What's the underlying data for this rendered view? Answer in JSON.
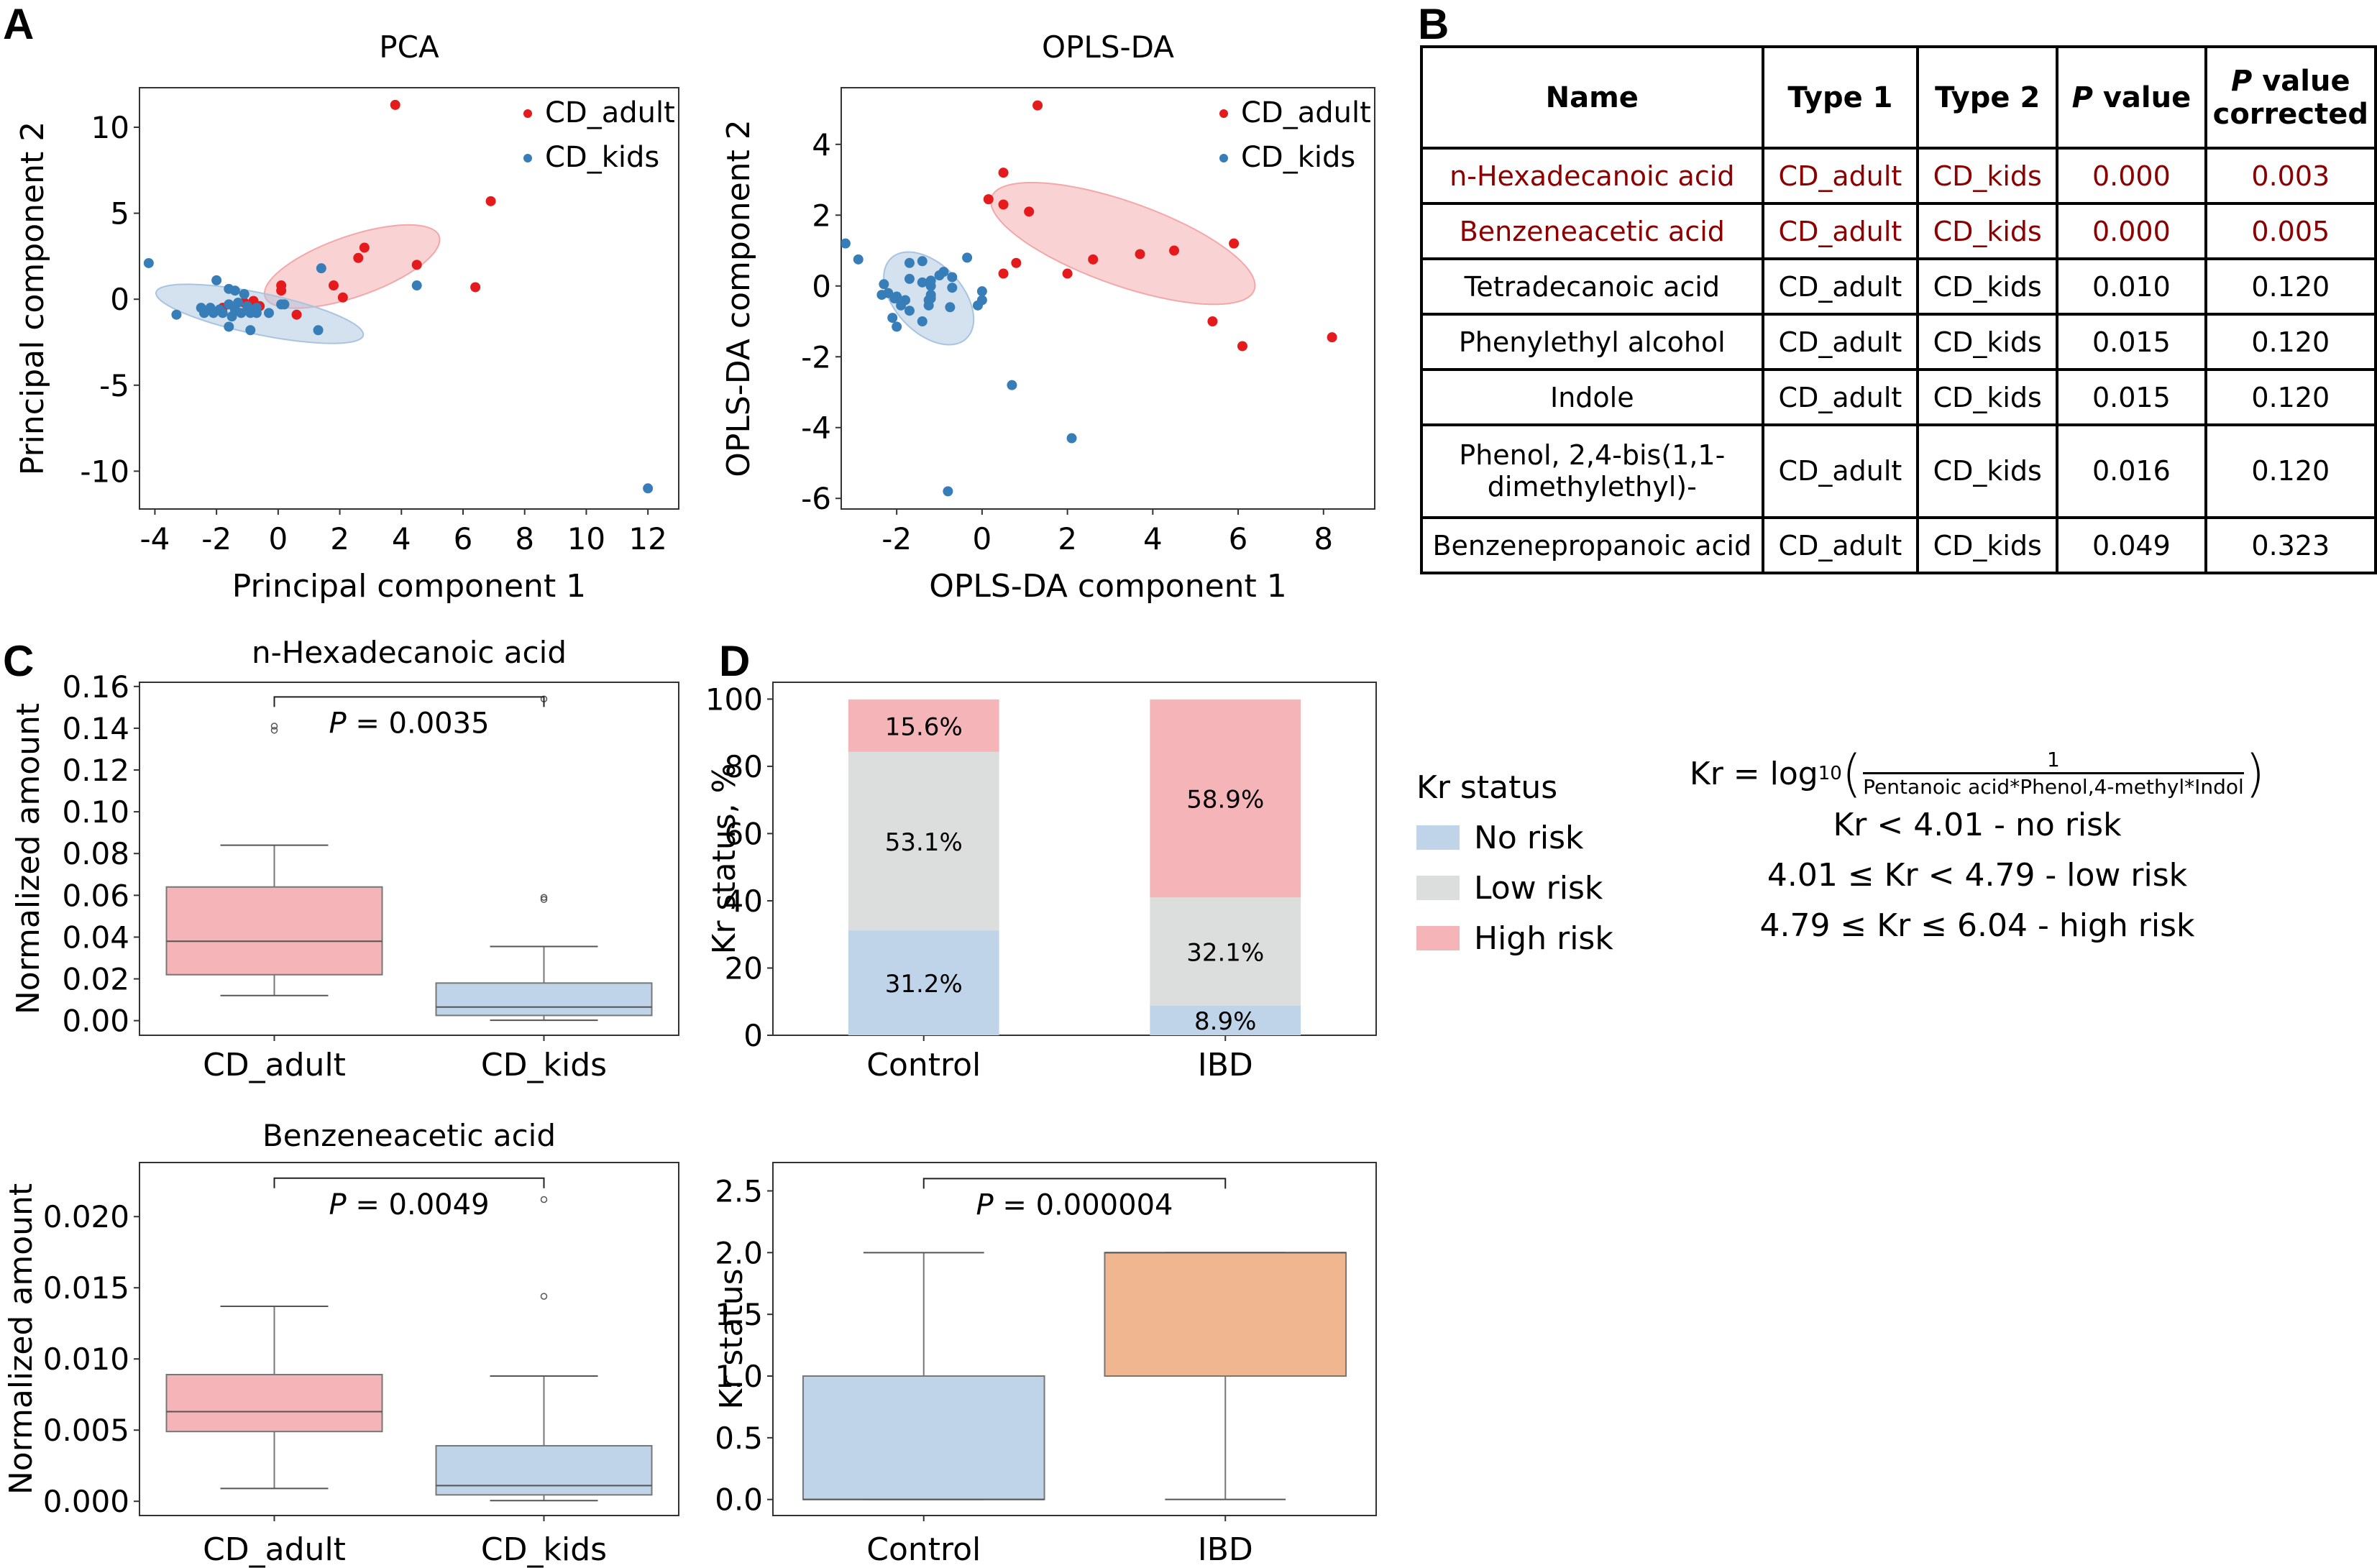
{
  "panels": {
    "A": "A",
    "B": "B",
    "C": "C",
    "D": "D"
  },
  "colors": {
    "cd_adult_point": "#e41a1c",
    "cd_kids_point": "#377eb8",
    "adult_ellipse": "#f4a7a9",
    "kids_ellipse": "#a9c4e0",
    "box_adult": "#f5b5b8",
    "box_kids": "#bfd4e8",
    "no_risk": "#bfd4e8",
    "low_risk": "#dcdddd",
    "high_risk": "#f5b5b8",
    "box_ibd": "#f0b690",
    "table_highlight": "#8b0000"
  },
  "chart_data": [
    {
      "id": "pca",
      "type": "scatter",
      "title": "PCA",
      "xlabel": "Principal component 1",
      "ylabel": "Principal component 2",
      "xlim": [
        -4.5,
        13.0
      ],
      "ylim": [
        -12.2,
        12.3
      ],
      "xticks": [
        -4,
        -2,
        0,
        2,
        4,
        6,
        8,
        10,
        12
      ],
      "yticks": [
        -10,
        -5,
        0,
        5,
        10
      ],
      "legend": {
        "position": "top-right",
        "entries": [
          "CD_adult",
          "CD_kids"
        ]
      },
      "series": [
        {
          "name": "CD_adult",
          "points": [
            [
              3.8,
              11.3
            ],
            [
              6.9,
              5.7
            ],
            [
              2.8,
              3.0
            ],
            [
              2.6,
              2.4
            ],
            [
              4.5,
              2.0
            ],
            [
              6.4,
              0.7
            ],
            [
              0.1,
              0.8
            ],
            [
              0.1,
              0.5
            ],
            [
              1.8,
              0.8
            ],
            [
              2.1,
              0.1
            ],
            [
              0.6,
              -0.9
            ],
            [
              -1.1,
              -0.2
            ],
            [
              -0.8,
              -0.1
            ],
            [
              -0.6,
              -0.4
            ],
            [
              -1.8,
              -0.5
            ]
          ]
        },
        {
          "name": "CD_kids",
          "points": [
            [
              -4.2,
              2.1
            ],
            [
              -3.3,
              -0.9
            ],
            [
              -2.0,
              1.1
            ],
            [
              -1.6,
              0.6
            ],
            [
              -1.4,
              0.5
            ],
            [
              -1.1,
              0.3
            ],
            [
              -2.5,
              -0.5
            ],
            [
              -2.4,
              -0.8
            ],
            [
              -2.2,
              -0.5
            ],
            [
              -2.1,
              -0.8
            ],
            [
              -1.9,
              -0.6
            ],
            [
              -1.8,
              -0.8
            ],
            [
              -1.6,
              -0.3
            ],
            [
              -1.5,
              -1.0
            ],
            [
              -1.4,
              -0.6
            ],
            [
              -1.3,
              -0.2
            ],
            [
              -1.2,
              -0.8
            ],
            [
              -1.0,
              -0.4
            ],
            [
              -0.9,
              -0.8
            ],
            [
              -0.7,
              -0.5
            ],
            [
              -0.7,
              -0.8
            ],
            [
              -0.3,
              -0.8
            ],
            [
              0.1,
              -0.3
            ],
            [
              0.2,
              -0.3
            ],
            [
              -1.6,
              -1.6
            ],
            [
              -0.9,
              -1.8
            ],
            [
              1.3,
              -1.8
            ],
            [
              1.4,
              1.8
            ],
            [
              4.5,
              0.8
            ],
            [
              12.0,
              -11.0
            ]
          ]
        }
      ],
      "ellipses": [
        {
          "group": "CD_adult",
          "center": [
            2.4,
            1.9
          ],
          "semi_major": 3.4,
          "semi_minor": 1.55,
          "angle_deg": 38
        },
        {
          "group": "CD_kids",
          "center": [
            -0.6,
            -0.85
          ],
          "semi_major": 3.6,
          "semi_minor": 1.15,
          "angle_deg": -22
        }
      ]
    },
    {
      "id": "oplsda",
      "type": "scatter",
      "title": "OPLS-DA",
      "xlabel": "OPLS-DA component 1",
      "ylabel": "OPLS-DA component 2",
      "xlim": [
        -3.3,
        9.2
      ],
      "ylim": [
        -6.3,
        5.6
      ],
      "xticks": [
        -2,
        0,
        2,
        4,
        6,
        8
      ],
      "yticks": [
        -6,
        -4,
        -2,
        0,
        2,
        4
      ],
      "legend": {
        "position": "top-right",
        "entries": [
          "CD_adult",
          "CD_kids"
        ]
      },
      "series": [
        {
          "name": "CD_adult",
          "points": [
            [
              1.3,
              5.1
            ],
            [
              0.5,
              3.2
            ],
            [
              0.15,
              2.45
            ],
            [
              0.5,
              2.3
            ],
            [
              1.1,
              2.1
            ],
            [
              5.9,
              1.2
            ],
            [
              4.5,
              1.0
            ],
            [
              3.7,
              0.9
            ],
            [
              2.6,
              0.75
            ],
            [
              0.8,
              0.65
            ],
            [
              0.5,
              0.35
            ],
            [
              2.0,
              0.35
            ],
            [
              5.4,
              -1.0
            ],
            [
              8.2,
              -1.45
            ],
            [
              6.1,
              -1.7
            ]
          ]
        },
        {
          "name": "CD_kids",
          "points": [
            [
              -3.2,
              1.2
            ],
            [
              -2.9,
              0.75
            ],
            [
              -1.7,
              0.65
            ],
            [
              -1.4,
              0.7
            ],
            [
              -2.3,
              0.05
            ],
            [
              -2.2,
              -0.2
            ],
            [
              -2.35,
              -0.25
            ],
            [
              -1.7,
              0.2
            ],
            [
              -1.4,
              0.1
            ],
            [
              -1.2,
              0.15
            ],
            [
              -1.2,
              0.0
            ],
            [
              -0.9,
              0.4
            ],
            [
              -1.0,
              0.3
            ],
            [
              -0.7,
              0.25
            ],
            [
              -0.7,
              -0.05
            ],
            [
              -2.0,
              -0.3
            ],
            [
              -2.05,
              -0.35
            ],
            [
              -1.8,
              -0.4
            ],
            [
              -1.2,
              -0.25
            ],
            [
              -1.2,
              -0.35
            ],
            [
              -1.25,
              -0.4
            ],
            [
              -1.25,
              -0.55
            ],
            [
              -1.9,
              -0.55
            ],
            [
              -1.7,
              -0.7
            ],
            [
              -0.75,
              -0.6
            ],
            [
              -0.35,
              0.8
            ],
            [
              0.0,
              -0.15
            ],
            [
              0.0,
              -0.4
            ],
            [
              -0.1,
              -0.55
            ],
            [
              -2.1,
              -0.9
            ],
            [
              -2.0,
              -1.15
            ],
            [
              -1.4,
              -1.0
            ],
            [
              0.7,
              -2.8
            ],
            [
              2.1,
              -4.3
            ],
            [
              -0.8,
              -5.8
            ]
          ]
        }
      ],
      "ellipses": [
        {
          "group": "CD_adult",
          "center": [
            3.3,
            1.2
          ],
          "semi_major": 3.35,
          "semi_minor": 1.15,
          "angle_deg": -24
        },
        {
          "group": "CD_kids",
          "center": [
            -1.25,
            -0.35
          ],
          "semi_major": 1.45,
          "semi_minor": 0.85,
          "angle_deg": -58
        }
      ]
    },
    {
      "id": "hexadecanoic",
      "type": "box",
      "title": "n-Hexadecanoic acid",
      "xlabel": "",
      "ylabel": "Normalized amount",
      "categories": [
        "CD_adult",
        "CD_kids"
      ],
      "ylim": [
        -0.007,
        0.162
      ],
      "yticks": [
        0.0,
        0.02,
        0.04,
        0.06,
        0.08,
        0.1,
        0.12,
        0.14,
        0.16
      ],
      "ytick_labels": [
        "0.00",
        "0.02",
        "0.04",
        "0.06",
        "0.08",
        "0.10",
        "0.12",
        "0.14",
        "0.16"
      ],
      "boxes": [
        {
          "category": "CD_adult",
          "whisker_low": 0.012,
          "q1": 0.022,
          "median": 0.038,
          "q3": 0.064,
          "whisker_high": 0.084,
          "outliers": [
            0.139,
            0.141
          ]
        },
        {
          "category": "CD_kids",
          "whisker_low": 0.0002,
          "q1": 0.0025,
          "median": 0.0065,
          "q3": 0.018,
          "whisker_high": 0.0355,
          "outliers": [
            0.058,
            0.059,
            0.154
          ]
        }
      ],
      "annotation": {
        "text_italic": "P",
        "text_rest": " = 0.0035",
        "bracket_y": 0.155
      }
    },
    {
      "id": "benzeneacetic",
      "type": "box",
      "title": "Benzeneacetic acid",
      "xlabel": "",
      "ylabel": "Normalized amount",
      "categories": [
        "CD_adult",
        "CD_kids"
      ],
      "ylim": [
        -0.001,
        0.0238
      ],
      "yticks": [
        0.0,
        0.005,
        0.01,
        0.015,
        0.02
      ],
      "ytick_labels": [
        "0.000",
        "0.005",
        "0.010",
        "0.015",
        "0.020"
      ],
      "boxes": [
        {
          "category": "CD_adult",
          "whisker_low": 0.0009,
          "q1": 0.0049,
          "median": 0.0063,
          "q3": 0.0089,
          "whisker_high": 0.0137,
          "outliers": []
        },
        {
          "category": "CD_kids",
          "whisker_low": 5e-05,
          "q1": 0.00045,
          "median": 0.0011,
          "q3": 0.0039,
          "whisker_high": 0.0088,
          "outliers": [
            0.0144,
            0.0212
          ]
        }
      ],
      "annotation": {
        "text_italic": "P",
        "text_rest": " = 0.0049",
        "bracket_y": 0.0227
      }
    },
    {
      "id": "kr_stacked",
      "type": "bar",
      "stacked": true,
      "title": "",
      "xlabel": "",
      "ylabel": "Kr status, %",
      "categories": [
        "Control",
        "IBD"
      ],
      "ylim": [
        0,
        105
      ],
      "yticks": [
        0,
        20,
        40,
        60,
        80,
        100
      ],
      "series": [
        {
          "name": "No risk",
          "values": [
            31.2,
            8.9
          ],
          "labels": [
            "31.2%",
            "8.9%"
          ]
        },
        {
          "name": "Low risk",
          "values": [
            53.1,
            32.1
          ],
          "labels": [
            "53.1%",
            "32.1%"
          ]
        },
        {
          "name": "High risk",
          "values": [
            15.6,
            58.9
          ],
          "labels": [
            "15.6%",
            "58.9%"
          ]
        }
      ],
      "legend": {
        "position": "right",
        "title": "Kr status",
        "entries": [
          "No risk",
          "Low risk",
          "High risk"
        ]
      }
    },
    {
      "id": "kr_box",
      "type": "box",
      "title": "",
      "xlabel": "",
      "ylabel": "Kr status",
      "categories": [
        "Control",
        "IBD"
      ],
      "ylim": [
        -0.13,
        2.73
      ],
      "yticks": [
        0.0,
        0.5,
        1.0,
        1.5,
        2.0,
        2.5
      ],
      "ytick_labels": [
        "0.0",
        "0.5",
        "1.0",
        "1.5",
        "2.0",
        "2.5"
      ],
      "boxes": [
        {
          "category": "Control",
          "whisker_low": 0.0,
          "q1": 0.0,
          "median": 0.0,
          "q3": 1.0,
          "whisker_high": 2.0,
          "outliers": []
        },
        {
          "category": "IBD",
          "whisker_low": 0.0,
          "q1": 1.0,
          "median": 2.0,
          "q3": 2.0,
          "whisker_high": 2.0,
          "outliers": []
        }
      ],
      "annotation": {
        "text_italic": "P",
        "text_rest": " = 0.000004",
        "bracket_y": 2.6
      }
    }
  ],
  "table": {
    "headers": {
      "name": "Name",
      "type1": "Type 1",
      "type2": "Type 2",
      "pvalue_italic": "P",
      "pvalue_rest": " value",
      "pcorr_italic": "P",
      "pcorr_line1_rest": " value",
      "pcorr_line2": "corrected"
    },
    "rows": [
      {
        "name": "n-Hexadecanoic acid",
        "type1": "CD_adult",
        "type2": "CD_kids",
        "p": "0.000",
        "p_corr": "0.003",
        "highlight": true
      },
      {
        "name": "Benzeneacetic acid",
        "type1": "CD_adult",
        "type2": "CD_kids",
        "p": "0.000",
        "p_corr": "0.005",
        "highlight": true
      },
      {
        "name": "Tetradecanoic acid",
        "type1": "CD_adult",
        "type2": "CD_kids",
        "p": "0.010",
        "p_corr": "0.120",
        "highlight": false
      },
      {
        "name": "Phenylethyl alcohol",
        "type1": "CD_adult",
        "type2": "CD_kids",
        "p": "0.015",
        "p_corr": "0.120",
        "highlight": false
      },
      {
        "name": "Indole",
        "type1": "CD_adult",
        "type2": "CD_kids",
        "p": "0.015",
        "p_corr": "0.120",
        "highlight": false
      },
      {
        "name_line1": "Phenol, 2,4-bis(1,1-",
        "name_line2": "dimethylethyl)-",
        "type1": "CD_adult",
        "type2": "CD_kids",
        "p": "0.016",
        "p_corr": "0.120",
        "highlight": false
      },
      {
        "name": "Benzenepropanoic acid",
        "type1": "CD_adult",
        "type2": "CD_kids",
        "p": "0.049",
        "p_corr": "0.323",
        "highlight": false
      }
    ]
  },
  "kr_legend": {
    "title": "Kr status",
    "items": [
      {
        "label": "No risk",
        "color": "#bfd4e8"
      },
      {
        "label": "Low risk",
        "color": "#dcdddd"
      },
      {
        "label": "High risk",
        "color": "#f5b5b8"
      }
    ]
  },
  "formula": {
    "lhs": "Kr = log",
    "subscript": "10",
    "numerator": "1",
    "denominator": "Pentanoic acid*Phenol,4-methyl*Indol",
    "rules": [
      "Kr < 4.01 - no risk",
      "4.01 ≤ Kr < 4.79 - low risk",
      "4.79 ≤ Kr ≤ 6.04 - high risk"
    ]
  }
}
